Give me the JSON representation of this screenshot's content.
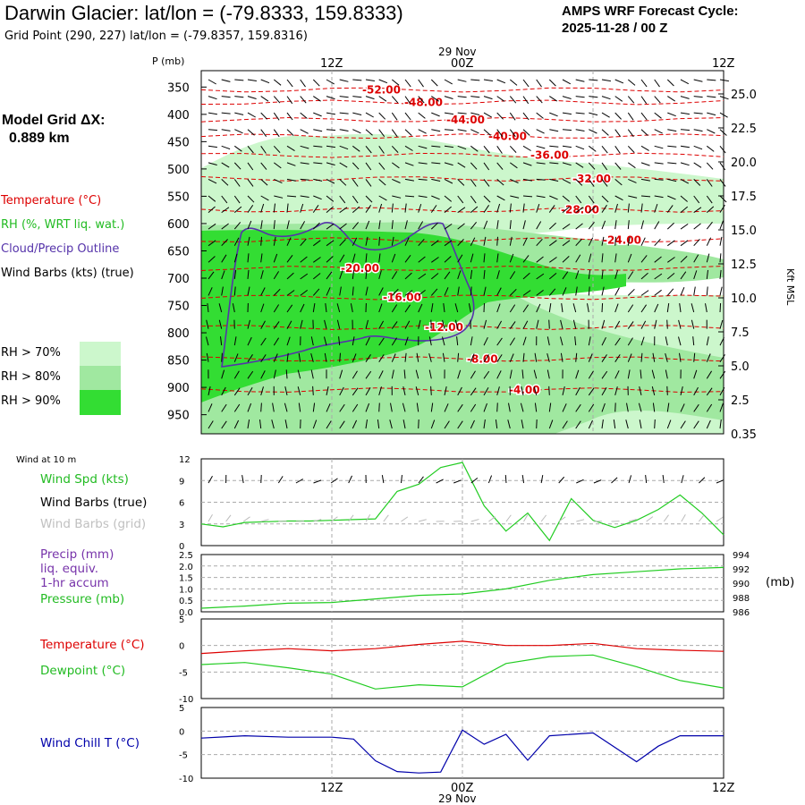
{
  "header": {
    "title": "Darwin Glacier:  lat/lon = (-79.8333, 159.8333)",
    "subtitle": "Grid Point (290, 227) lat/lon = (-79.8357, 159.8316)",
    "cycle_line1": "AMPS WRF Forecast Cycle:",
    "cycle_line2": "2025-11-28 / 00  Z"
  },
  "side": {
    "grid_title": "Model Grid ΔX:",
    "grid_value": "0.889 km",
    "legend": {
      "temperature": "Temperature (°C)",
      "rh": "RH (%, WRT liq. wat.)",
      "cloud": "Cloud/Precip Outline",
      "wind": "Wind Barbs (kts) (true)"
    },
    "rh_levels": [
      "RH > 70%",
      "RH > 80%",
      "RH > 90%"
    ],
    "wind10_title": "Wind at 10 m"
  },
  "colors": {
    "temperature": "#dd0000",
    "rh70": "#ccf7cc",
    "rh80": "#a0e8a0",
    "rh90": "#33dd33",
    "cloud": "#5533aa",
    "green_line": "#22cc22",
    "precip_label": "#7733aa",
    "wind_chill": "#0000aa",
    "grid_line": "#aaaaaa"
  },
  "time_axis": {
    "ticks": [
      "12Z",
      "00Z",
      "12Z"
    ],
    "date_label": "29 Nov"
  },
  "chart_data": [
    {
      "type": "heatmap",
      "name": "vertical-cross-section",
      "ylabel_left": "P (mb)",
      "ylabel_right": "Kft MSL",
      "pressure_ticks": [
        350,
        400,
        450,
        500,
        550,
        600,
        650,
        700,
        750,
        800,
        850,
        900,
        950
      ],
      "height_ticks": [
        "25.0",
        "22.5",
        "20.0",
        "17.5",
        "15.0",
        "12.5",
        "10.0",
        "7.5",
        "5.0",
        "2.5",
        "0.35"
      ],
      "ylim": [
        320,
        985
      ],
      "xlim_hours": [
        0,
        48
      ],
      "isotherms": [
        {
          "label": "-52.00",
          "p": 355
        },
        {
          "label": "-48.00",
          "p": 378
        },
        {
          "label": "-44.00",
          "p": 410
        },
        {
          "label": "-40.00",
          "p": 440
        },
        {
          "label": "-36.00",
          "p": 475
        },
        {
          "label": "-32.00",
          "p": 518
        },
        {
          "label": "-28.00",
          "p": 575
        },
        {
          "label": "-24.00",
          "p": 630
        },
        {
          "label": "-20.00",
          "p": 682
        },
        {
          "label": "-16.00",
          "p": 735
        },
        {
          "label": "-12.00",
          "p": 790
        },
        {
          "label": "-8.00",
          "p": 848
        },
        {
          "label": "-4.00",
          "p": 905
        }
      ]
    },
    {
      "type": "line",
      "name": "wind-speed",
      "ylabel": "Wind Spd (kts)",
      "barbs_true_label": "Wind Barbs (true)",
      "barbs_grid_label": "Wind Barbs (grid)",
      "yticks": [
        0,
        3,
        6,
        9,
        12
      ],
      "ylim": [
        0,
        12
      ],
      "x_hours": [
        0,
        2,
        4,
        6,
        8,
        10,
        12,
        14,
        16,
        18,
        20,
        22,
        24,
        26,
        28,
        30,
        32,
        34,
        36,
        38,
        40,
        42,
        44,
        46,
        48
      ],
      "values": [
        3.0,
        2.6,
        3.2,
        3.3,
        3.4,
        3.4,
        3.5,
        3.6,
        3.7,
        7.5,
        8.5,
        10.8,
        11.5,
        5.5,
        2.0,
        4.5,
        0.7,
        6.5,
        3.5,
        2.5,
        3.5,
        5.0,
        7.0,
        4.5,
        1.5
      ]
    },
    {
      "type": "line",
      "name": "precip-pressure",
      "labels": [
        "Precip (mm)",
        "liq. equiv.",
        "1-hr accum",
        "Pressure (mb)"
      ],
      "yticks_left": [
        "0.0",
        "0.5",
        "1.0",
        "1.5",
        "2.0",
        "2.5"
      ],
      "yticks_right": [
        "986",
        "988",
        "990",
        "992",
        "994"
      ],
      "unit_right": "(mb)",
      "ylim_right": [
        986,
        994
      ],
      "x_hours": [
        0,
        4,
        8,
        12,
        16,
        20,
        24,
        28,
        32,
        36,
        40,
        44,
        48
      ],
      "values_pressure": [
        986.5,
        986.8,
        987.2,
        987.3,
        987.8,
        988.3,
        988.5,
        989.2,
        990.4,
        991.2,
        991.6,
        992.0,
        992.2
      ],
      "precip_values": [
        0,
        0,
        0,
        0,
        0,
        0,
        0,
        0,
        0,
        0,
        0,
        0,
        0
      ]
    },
    {
      "type": "line",
      "name": "temperature-dewpoint",
      "series_labels": [
        "Temperature (°C)",
        "Dewpoint (°C)"
      ],
      "yticks": [
        "5",
        "0",
        "-5",
        "-10"
      ],
      "ylim": [
        -10,
        5
      ],
      "x_hours": [
        0,
        4,
        8,
        12,
        16,
        20,
        24,
        28,
        32,
        36,
        40,
        44,
        48
      ],
      "temperature": [
        -1.5,
        -1.0,
        -0.6,
        -1.0,
        -0.6,
        0.2,
        0.8,
        0.0,
        0.0,
        0.4,
        -0.6,
        -0.9,
        -1.1
      ],
      "dewpoint": [
        -3.6,
        -3.2,
        -4.2,
        -5.4,
        -8.2,
        -7.4,
        -7.8,
        -3.4,
        -2.1,
        -1.8,
        -4.0,
        -6.6,
        -8.0
      ]
    },
    {
      "type": "line",
      "name": "wind-chill",
      "ylabel": "Wind Chill T (°C)",
      "yticks": [
        "5",
        "0",
        "-5",
        "-10"
      ],
      "ylim": [
        -10,
        5
      ],
      "x_hours": [
        0,
        4,
        8,
        12,
        14,
        16,
        18,
        20,
        22,
        24,
        26,
        28,
        30,
        32,
        36,
        40,
        42,
        44,
        46,
        48
      ],
      "values": [
        -1.5,
        -1.0,
        -1.3,
        -1.3,
        -1.7,
        -6.3,
        -8.6,
        -8.9,
        -8.7,
        0.2,
        -2.8,
        -0.7,
        -6.2,
        -1.0,
        -0.4,
        -6.5,
        -3.2,
        -1.0,
        -1.0,
        -1.0
      ]
    }
  ]
}
